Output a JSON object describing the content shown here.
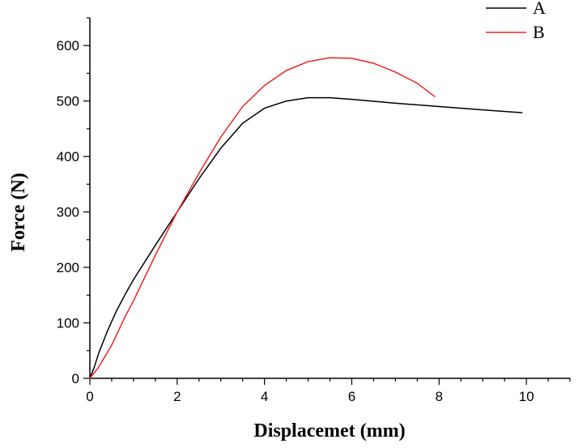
{
  "chart_data": {
    "type": "line",
    "title": "",
    "xlabel": "Displacemet (mm)",
    "ylabel": "Force (N)",
    "xlim": [
      0,
      11
    ],
    "ylim": [
      0,
      650
    ],
    "xticks": [
      0,
      2,
      4,
      6,
      8,
      10
    ],
    "yticks": [
      0,
      100,
      200,
      300,
      400,
      500,
      600
    ],
    "x_minor_step": 0.5,
    "y_minor_step": 50,
    "grid": false,
    "legend_position": "top-right",
    "series": [
      {
        "name": "A",
        "color": "#000000",
        "points": [
          [
            0,
            0
          ],
          [
            0.1,
            20
          ],
          [
            0.2,
            45
          ],
          [
            0.4,
            85
          ],
          [
            0.6,
            120
          ],
          [
            0.8,
            150
          ],
          [
            1.0,
            178
          ],
          [
            1.5,
            240
          ],
          [
            2.0,
            300
          ],
          [
            2.5,
            360
          ],
          [
            3.0,
            415
          ],
          [
            3.5,
            460
          ],
          [
            4.0,
            487
          ],
          [
            4.5,
            500
          ],
          [
            5.0,
            506
          ],
          [
            5.5,
            506
          ],
          [
            6.0,
            503
          ],
          [
            7.0,
            496
          ],
          [
            8.0,
            490
          ],
          [
            9.0,
            484
          ],
          [
            9.9,
            479
          ]
        ]
      },
      {
        "name": "B",
        "color": "#e8262a",
        "points": [
          [
            0,
            0
          ],
          [
            0.2,
            20
          ],
          [
            0.5,
            60
          ],
          [
            0.8,
            110
          ],
          [
            1.0,
            140
          ],
          [
            1.5,
            222
          ],
          [
            2.0,
            300
          ],
          [
            2.5,
            370
          ],
          [
            3.0,
            435
          ],
          [
            3.5,
            490
          ],
          [
            4.0,
            528
          ],
          [
            4.5,
            555
          ],
          [
            5.0,
            571
          ],
          [
            5.5,
            578
          ],
          [
            6.0,
            577
          ],
          [
            6.5,
            568
          ],
          [
            7.0,
            552
          ],
          [
            7.5,
            532
          ],
          [
            7.9,
            508
          ]
        ]
      }
    ]
  }
}
